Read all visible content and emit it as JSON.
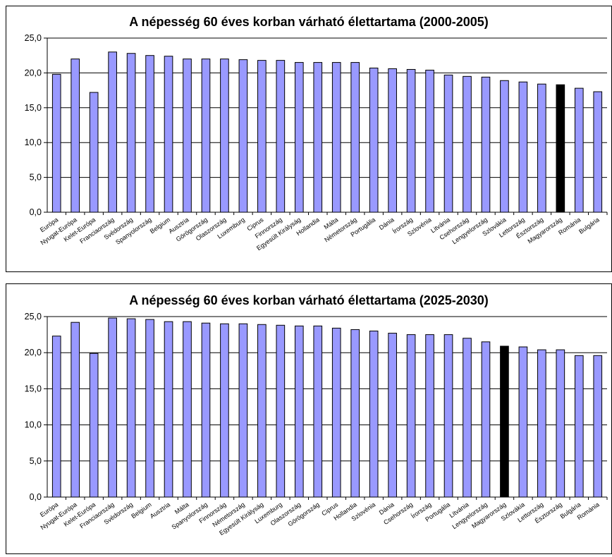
{
  "colors": {
    "bar": "#9999ff",
    "highlight": "#000000",
    "grid": "#000000"
  },
  "chart_data": [
    {
      "type": "bar",
      "title": "A népesség 60 éves korban várható élettartama (2000-2005)",
      "xlabel": "",
      "ylabel": "",
      "ylim": [
        0,
        25
      ],
      "yticks": [
        "0,0",
        "5,0",
        "10,0",
        "15,0",
        "20,0",
        "25,0"
      ],
      "grid": "horizontal",
      "highlight": "Magyarország",
      "categories": [
        "Európa",
        "Nyugat-Európa",
        "Kelet-Európa",
        "Franciaország",
        "Svédország",
        "Spanyolország",
        "Belgium",
        "Ausztria",
        "Görögország",
        "Olaszország",
        "Luxemburg",
        "Ciprus",
        "Finnország",
        "Egyesült Királyság",
        "Hollandia",
        "Málta",
        "Németország",
        "Portugália",
        "Dánia",
        "Írország",
        "Szlovénia",
        "Litvánia",
        "Csehország",
        "Lengyelország",
        "Szlovákia",
        "Lettország",
        "Észtország",
        "Magyarország",
        "Románia",
        "Bulgária"
      ],
      "values": [
        19.8,
        22.0,
        17.2,
        23.0,
        22.8,
        22.5,
        22.4,
        22.0,
        22.0,
        22.0,
        21.9,
        21.8,
        21.8,
        21.5,
        21.5,
        21.5,
        21.5,
        20.7,
        20.6,
        20.5,
        20.4,
        19.7,
        19.5,
        19.4,
        18.9,
        18.7,
        18.4,
        18.3,
        17.8,
        17.3
      ]
    },
    {
      "type": "bar",
      "title": "A népesség 60 éves korban várható élettartama (2025-2030)",
      "xlabel": "",
      "ylabel": "",
      "ylim": [
        0,
        25
      ],
      "yticks": [
        "0,0",
        "5,0",
        "10,0",
        "15,0",
        "20,0",
        "25,0"
      ],
      "grid": "horizontal",
      "highlight": "Magyarország",
      "categories": [
        "Európa",
        "Nyugat-Európa",
        "Kelet-Európa",
        "Franciaország",
        "Svédország",
        "Belgium",
        "Ausztria",
        "Málta",
        "Spanyolország",
        "Finnország",
        "Németország",
        "Egyesült Királyság",
        "Luxemburg",
        "Olaszország",
        "Görögország",
        "Ciprus",
        "Hollandia",
        "Szlovénia",
        "Dánia",
        "Csehország",
        "Írország",
        "Portugália",
        "Litvánia",
        "Lengyelország",
        "Magyarország",
        "Szlovákia",
        "Lettország",
        "Észtország",
        "Bulgária",
        "Románia"
      ],
      "values": [
        22.3,
        24.2,
        19.9,
        24.8,
        24.7,
        24.6,
        24.3,
        24.3,
        24.1,
        24.0,
        24.0,
        23.9,
        23.8,
        23.7,
        23.7,
        23.4,
        23.2,
        23.0,
        22.7,
        22.5,
        22.5,
        22.5,
        22.0,
        21.5,
        20.9,
        20.8,
        20.4,
        20.4,
        19.6,
        19.6
      ]
    }
  ]
}
